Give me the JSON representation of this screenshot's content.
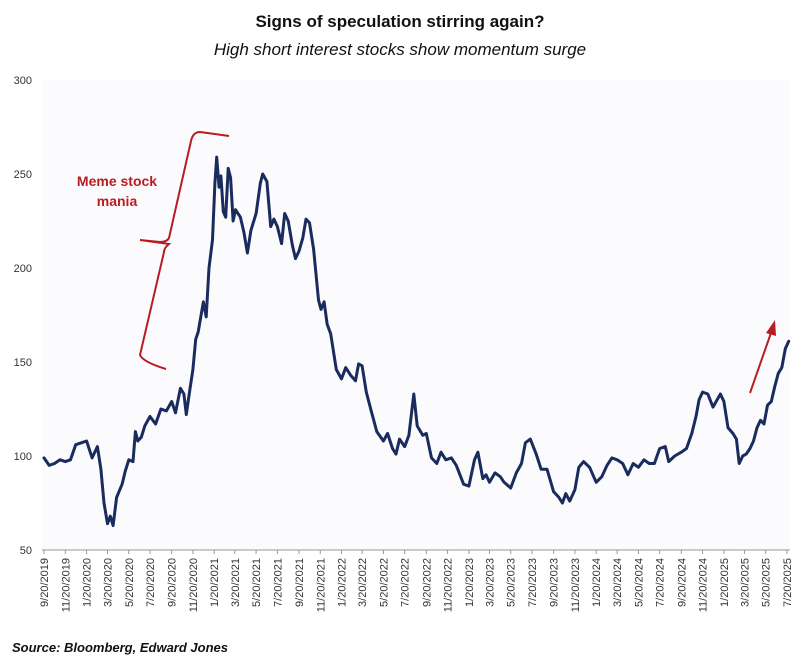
{
  "chart_data": {
    "type": "line",
    "title": "Signs of speculation stirring again?",
    "subtitle": "High short interest stocks show momentum surge",
    "source": "Source: Bloomberg, Edward Jones",
    "ylim": [
      50,
      300
    ],
    "yticks": [
      50,
      100,
      150,
      200,
      250,
      300
    ],
    "grid": false,
    "xticks": [
      "9/20/2019",
      "11/20/2019",
      "1/20/2020",
      "3/20/2020",
      "5/20/2020",
      "7/20/2020",
      "9/20/2020",
      "11/20/2020",
      "1/20/2021",
      "3/20/2021",
      "5/20/2021",
      "7/20/2021",
      "9/20/2021",
      "11/20/2021",
      "1/20/2022",
      "3/20/2022",
      "5/20/2022",
      "7/20/2022",
      "9/20/2022",
      "11/20/2022",
      "1/20/2023",
      "3/20/2023",
      "5/20/2023",
      "7/20/2023",
      "9/20/2023",
      "11/20/2023",
      "1/20/2024",
      "3/20/2024",
      "5/20/2024",
      "7/20/2024",
      "9/20/2024",
      "11/20/2024",
      "1/20/2025",
      "3/20/2025",
      "5/20/2025",
      "7/20/2025"
    ],
    "series": [
      {
        "color": "#1a2b5e",
        "points": [
          [
            "2019-09-20",
            99
          ],
          [
            "2019-10-05",
            95
          ],
          [
            "2019-10-20",
            96
          ],
          [
            "2019-11-05",
            98
          ],
          [
            "2019-11-20",
            97
          ],
          [
            "2019-12-05",
            98
          ],
          [
            "2019-12-20",
            106
          ],
          [
            "2020-01-05",
            107
          ],
          [
            "2020-01-20",
            108
          ],
          [
            "2020-02-05",
            99
          ],
          [
            "2020-02-20",
            105
          ],
          [
            "2020-03-01",
            93
          ],
          [
            "2020-03-10",
            75
          ],
          [
            "2020-03-20",
            64
          ],
          [
            "2020-03-28",
            68
          ],
          [
            "2020-04-05",
            63
          ],
          [
            "2020-04-15",
            78
          ],
          [
            "2020-05-01",
            85
          ],
          [
            "2020-05-10",
            92
          ],
          [
            "2020-05-20",
            98
          ],
          [
            "2020-06-01",
            97
          ],
          [
            "2020-06-08",
            113
          ],
          [
            "2020-06-15",
            108
          ],
          [
            "2020-06-25",
            110
          ],
          [
            "2020-07-05",
            116
          ],
          [
            "2020-07-20",
            121
          ],
          [
            "2020-08-05",
            117
          ],
          [
            "2020-08-20",
            125
          ],
          [
            "2020-09-05",
            124
          ],
          [
            "2020-09-20",
            129
          ],
          [
            "2020-10-01",
            123
          ],
          [
            "2020-10-15",
            136
          ],
          [
            "2020-10-25",
            133
          ],
          [
            "2020-11-01",
            122
          ],
          [
            "2020-11-10",
            134
          ],
          [
            "2020-11-20",
            146
          ],
          [
            "2020-11-28",
            162
          ],
          [
            "2020-12-05",
            166
          ],
          [
            "2020-12-20",
            182
          ],
          [
            "2020-12-28",
            174
          ],
          [
            "2021-01-05",
            200
          ],
          [
            "2021-01-15",
            215
          ],
          [
            "2021-01-22",
            245
          ],
          [
            "2021-01-27",
            259
          ],
          [
            "2021-02-03",
            243
          ],
          [
            "2021-02-08",
            249
          ],
          [
            "2021-02-15",
            230
          ],
          [
            "2021-02-22",
            227
          ],
          [
            "2021-03-01",
            253
          ],
          [
            "2021-03-08",
            248
          ],
          [
            "2021-03-15",
            225
          ],
          [
            "2021-03-22",
            231
          ],
          [
            "2021-04-05",
            227
          ],
          [
            "2021-04-15",
            219
          ],
          [
            "2021-04-25",
            208
          ],
          [
            "2021-05-05",
            220
          ],
          [
            "2021-05-20",
            229
          ],
          [
            "2021-06-01",
            245
          ],
          [
            "2021-06-08",
            250
          ],
          [
            "2021-06-20",
            246
          ],
          [
            "2021-07-01",
            222
          ],
          [
            "2021-07-10",
            226
          ],
          [
            "2021-07-20",
            222
          ],
          [
            "2021-08-01",
            213
          ],
          [
            "2021-08-10",
            229
          ],
          [
            "2021-08-20",
            225
          ],
          [
            "2021-09-01",
            212
          ],
          [
            "2021-09-10",
            205
          ],
          [
            "2021-09-20",
            209
          ],
          [
            "2021-10-01",
            216
          ],
          [
            "2021-10-10",
            226
          ],
          [
            "2021-10-20",
            224
          ],
          [
            "2021-11-01",
            210
          ],
          [
            "2021-11-15",
            183
          ],
          [
            "2021-11-22",
            178
          ],
          [
            "2021-12-01",
            182
          ],
          [
            "2021-12-10",
            170
          ],
          [
            "2021-12-20",
            165
          ],
          [
            "2022-01-05",
            146
          ],
          [
            "2022-01-20",
            141
          ],
          [
            "2022-02-01",
            147
          ],
          [
            "2022-02-15",
            143
          ],
          [
            "2022-03-01",
            140
          ],
          [
            "2022-03-10",
            149
          ],
          [
            "2022-03-20",
            148
          ],
          [
            "2022-04-01",
            134
          ],
          [
            "2022-04-15",
            124
          ],
          [
            "2022-05-01",
            113
          ],
          [
            "2022-05-20",
            108
          ],
          [
            "2022-06-01",
            112
          ],
          [
            "2022-06-15",
            104
          ],
          [
            "2022-06-25",
            101
          ],
          [
            "2022-07-05",
            109
          ],
          [
            "2022-07-20",
            105
          ],
          [
            "2022-08-01",
            111
          ],
          [
            "2022-08-15",
            133
          ],
          [
            "2022-08-25",
            116
          ],
          [
            "2022-09-10",
            111
          ],
          [
            "2022-09-20",
            112
          ],
          [
            "2022-10-05",
            99
          ],
          [
            "2022-10-20",
            96
          ],
          [
            "2022-11-01",
            102
          ],
          [
            "2022-11-15",
            98
          ],
          [
            "2022-12-01",
            99
          ],
          [
            "2022-12-15",
            95
          ],
          [
            "2023-01-05",
            85
          ],
          [
            "2023-01-20",
            84
          ],
          [
            "2023-02-05",
            98
          ],
          [
            "2023-02-15",
            102
          ],
          [
            "2023-03-01",
            88
          ],
          [
            "2023-03-10",
            90
          ],
          [
            "2023-03-20",
            86
          ],
          [
            "2023-04-05",
            91
          ],
          [
            "2023-04-20",
            89
          ],
          [
            "2023-05-01",
            86
          ],
          [
            "2023-05-20",
            83
          ],
          [
            "2023-06-05",
            91
          ],
          [
            "2023-06-20",
            96
          ],
          [
            "2023-07-01",
            107
          ],
          [
            "2023-07-15",
            109
          ],
          [
            "2023-08-01",
            101
          ],
          [
            "2023-08-15",
            93
          ],
          [
            "2023-09-01",
            93
          ],
          [
            "2023-09-20",
            81
          ],
          [
            "2023-10-05",
            78
          ],
          [
            "2023-10-15",
            75
          ],
          [
            "2023-10-25",
            80
          ],
          [
            "2023-11-05",
            76
          ],
          [
            "2023-11-20",
            82
          ],
          [
            "2023-12-01",
            94
          ],
          [
            "2023-12-15",
            97
          ],
          [
            "2024-01-01",
            94
          ],
          [
            "2024-01-20",
            86
          ],
          [
            "2024-02-05",
            89
          ],
          [
            "2024-02-20",
            95
          ],
          [
            "2024-03-05",
            99
          ],
          [
            "2024-03-20",
            98
          ],
          [
            "2024-04-05",
            96
          ],
          [
            "2024-04-20",
            90
          ],
          [
            "2024-05-05",
            96
          ],
          [
            "2024-05-20",
            94
          ],
          [
            "2024-06-05",
            98
          ],
          [
            "2024-06-20",
            96
          ],
          [
            "2024-07-05",
            96
          ],
          [
            "2024-07-20",
            104
          ],
          [
            "2024-08-05",
            105
          ],
          [
            "2024-08-15",
            97
          ],
          [
            "2024-09-01",
            100
          ],
          [
            "2024-09-20",
            102
          ],
          [
            "2024-10-05",
            104
          ],
          [
            "2024-10-20",
            112
          ],
          [
            "2024-11-01",
            121
          ],
          [
            "2024-11-10",
            130
          ],
          [
            "2024-11-20",
            134
          ],
          [
            "2024-12-05",
            133
          ],
          [
            "2024-12-20",
            126
          ],
          [
            "2025-01-01",
            130
          ],
          [
            "2025-01-10",
            133
          ],
          [
            "2025-01-20",
            129
          ],
          [
            "2025-02-01",
            115
          ],
          [
            "2025-02-15",
            112
          ],
          [
            "2025-02-25",
            109
          ],
          [
            "2025-03-05",
            96
          ],
          [
            "2025-03-15",
            100
          ],
          [
            "2025-03-25",
            101
          ],
          [
            "2025-04-05",
            104
          ],
          [
            "2025-04-15",
            108
          ],
          [
            "2025-04-25",
            115
          ],
          [
            "2025-05-05",
            119
          ],
          [
            "2025-05-15",
            117
          ],
          [
            "2025-05-25",
            127
          ],
          [
            "2025-06-05",
            129
          ],
          [
            "2025-06-15",
            137
          ],
          [
            "2025-06-25",
            144
          ],
          [
            "2025-07-05",
            147
          ],
          [
            "2025-07-15",
            157
          ],
          [
            "2025-07-25",
            161
          ]
        ]
      }
    ],
    "annotations": [
      {
        "text_lines": [
          "Meme stock",
          "mania"
        ],
        "color": "#b81c22"
      }
    ]
  }
}
